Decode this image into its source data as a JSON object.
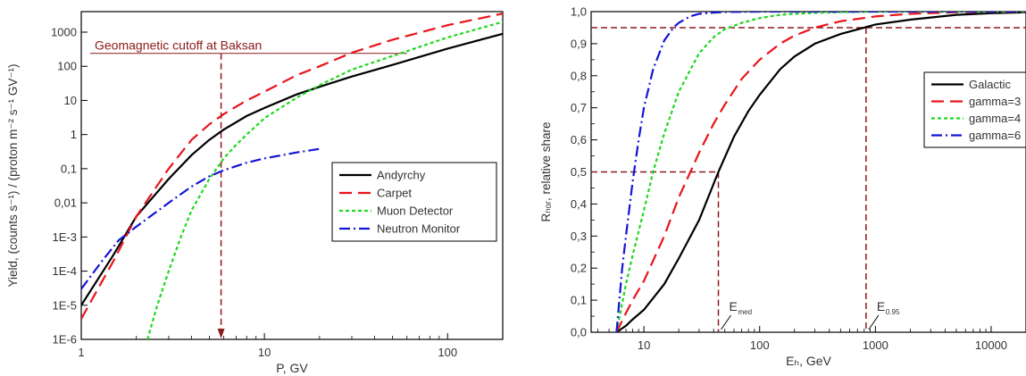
{
  "chart_data": [
    {
      "type": "line",
      "xlabel": "P, GV",
      "ylabel": "Yield, (counts s⁻¹) / (proton m⁻² s⁻¹ GV⁻¹)",
      "x_scale": "log",
      "y_scale": "log",
      "xlim": [
        1,
        200
      ],
      "ylim": [
        1e-06,
        4000
      ],
      "xticks": [
        {
          "v": 1,
          "label": "1"
        },
        {
          "v": 10,
          "label": "10"
        },
        {
          "v": 100,
          "label": "100"
        }
      ],
      "yticks": [
        {
          "v": 1e-06,
          "label": "1E-6"
        },
        {
          "v": 1e-05,
          "label": "1E-5"
        },
        {
          "v": 0.0001,
          "label": "1E-4"
        },
        {
          "v": 0.001,
          "label": "1E-3"
        },
        {
          "v": 0.01,
          "label": "0,01"
        },
        {
          "v": 0.1,
          "label": "0,1"
        },
        {
          "v": 1,
          "label": "1"
        },
        {
          "v": 10,
          "label": "10"
        },
        {
          "v": 100,
          "label": "100"
        },
        {
          "v": 1000,
          "label": "1000"
        }
      ],
      "legend_position": "center-right",
      "annotation": {
        "text": "Geomagnetic cutoff at Baksan",
        "x": 5.8,
        "y_line": 240
      },
      "series": [
        {
          "name": "Andyrchy",
          "color": "#000000",
          "dash": "solid",
          "x": [
            1,
            1.5,
            2,
            3,
            4,
            5,
            6,
            8,
            10,
            15,
            20,
            30,
            50,
            100,
            200
          ],
          "y": [
            1e-05,
            0.0003,
            0.004,
            0.05,
            0.25,
            0.7,
            1.4,
            3.5,
            6,
            15,
            25,
            50,
            110,
            330,
            900
          ]
        },
        {
          "name": "Carpet",
          "color": "#e8141b",
          "dash": "long",
          "x": [
            1,
            1.5,
            2,
            3,
            4,
            5,
            6,
            8,
            10,
            15,
            20,
            30,
            50,
            100,
            200
          ],
          "y": [
            4e-06,
            0.0002,
            0.004,
            0.1,
            0.7,
            2,
            4,
            10,
            18,
            55,
            100,
            250,
            600,
            1600,
            3500
          ]
        },
        {
          "name": "Muon Detector",
          "color": "#1fd81f",
          "dash": "short",
          "x": [
            2.3,
            2.6,
            3,
            3.5,
            4,
            5,
            6,
            7,
            8,
            10,
            15,
            20,
            30,
            50,
            100,
            200
          ],
          "y": [
            1e-06,
            1e-05,
            0.0001,
            0.001,
            0.006,
            0.05,
            0.2,
            0.5,
            1,
            3,
            12,
            28,
            80,
            200,
            700,
            2000
          ]
        },
        {
          "name": "Neutron Monitor",
          "color": "#1414d8",
          "dash": "dashdot",
          "x": [
            1,
            1.3,
            1.6,
            2,
            3,
            4,
            5,
            6,
            8,
            10,
            15,
            20
          ],
          "y": [
            3e-05,
            0.0002,
            0.0008,
            0.002,
            0.01,
            0.03,
            0.06,
            0.09,
            0.15,
            0.2,
            0.3,
            0.38
          ]
        }
      ]
    },
    {
      "type": "line",
      "xlabel": "Eₕ, GeV",
      "ylabel": "Rₙₒᵣ, relative share",
      "x_scale": "log",
      "xlim": [
        3.5,
        20000
      ],
      "ylim": [
        0,
        1
      ],
      "xticks": [
        {
          "v": 10,
          "label": "10"
        },
        {
          "v": 100,
          "label": "100"
        },
        {
          "v": 1000,
          "label": "1000"
        },
        {
          "v": 10000,
          "label": "10000"
        }
      ],
      "yticks": [
        {
          "v": 0,
          "label": "0,0"
        },
        {
          "v": 0.1,
          "label": "0,1"
        },
        {
          "v": 0.2,
          "label": "0,2"
        },
        {
          "v": 0.3,
          "label": "0,3"
        },
        {
          "v": 0.4,
          "label": "0,4"
        },
        {
          "v": 0.5,
          "label": "0,5"
        },
        {
          "v": 0.6,
          "label": "0,6"
        },
        {
          "v": 0.7,
          "label": "0,7"
        },
        {
          "v": 0.8,
          "label": "0,8"
        },
        {
          "v": 0.9,
          "label": "0,9"
        },
        {
          "v": 1.0,
          "label": "1,0"
        }
      ],
      "legend_position": "top-right",
      "reference_lines": {
        "y_half": 0.5,
        "x_med": 44,
        "y_95": 0.95,
        "x_95": 830
      },
      "annotations": [
        {
          "main": "E",
          "sub": "med",
          "x": 44
        },
        {
          "main": "E",
          "sub": "0.95",
          "x": 830
        }
      ],
      "series": [
        {
          "name": "Galactic",
          "color": "#000000",
          "dash": "solid",
          "x": [
            5.8,
            7,
            8,
            10,
            15,
            20,
            30,
            44,
            60,
            80,
            100,
            150,
            200,
            300,
            500,
            800,
            1000,
            2000,
            5000,
            10000,
            20000
          ],
          "y": [
            0.0,
            0.02,
            0.04,
            0.07,
            0.15,
            0.23,
            0.35,
            0.5,
            0.61,
            0.69,
            0.74,
            0.82,
            0.86,
            0.9,
            0.93,
            0.95,
            0.96,
            0.975,
            0.99,
            0.995,
            0.998
          ]
        },
        {
          "name": "gamma=3",
          "color": "#e8141b",
          "dash": "long",
          "x": [
            5.8,
            7,
            8,
            10,
            15,
            20,
            30,
            40,
            50,
            70,
            100,
            150,
            200,
            300,
            500,
            1000,
            2000,
            5000,
            20000
          ],
          "y": [
            0.0,
            0.06,
            0.1,
            0.16,
            0.3,
            0.42,
            0.56,
            0.65,
            0.71,
            0.79,
            0.85,
            0.9,
            0.925,
            0.95,
            0.97,
            0.985,
            0.993,
            0.998,
            1.0
          ]
        },
        {
          "name": "gamma=4",
          "color": "#1fd81f",
          "dash": "short",
          "x": [
            5.8,
            7,
            8,
            10,
            12,
            15,
            20,
            30,
            40,
            50,
            70,
            100,
            150,
            200,
            300,
            500,
            1000,
            20000
          ],
          "y": [
            0.0,
            0.15,
            0.24,
            0.38,
            0.5,
            0.62,
            0.75,
            0.87,
            0.92,
            0.945,
            0.965,
            0.98,
            0.99,
            0.993,
            0.996,
            0.998,
            1.0,
            1.0
          ]
        },
        {
          "name": "gamma=6",
          "color": "#1414d8",
          "dash": "dashdot",
          "x": [
            5.8,
            6.5,
            7,
            8,
            9,
            10,
            12,
            15,
            18,
            20,
            25,
            30,
            40,
            50,
            100,
            20000
          ],
          "y": [
            0.0,
            0.2,
            0.3,
            0.47,
            0.6,
            0.7,
            0.82,
            0.91,
            0.95,
            0.965,
            0.985,
            0.993,
            0.997,
            0.999,
            1.0,
            1.0
          ]
        }
      ]
    }
  ]
}
